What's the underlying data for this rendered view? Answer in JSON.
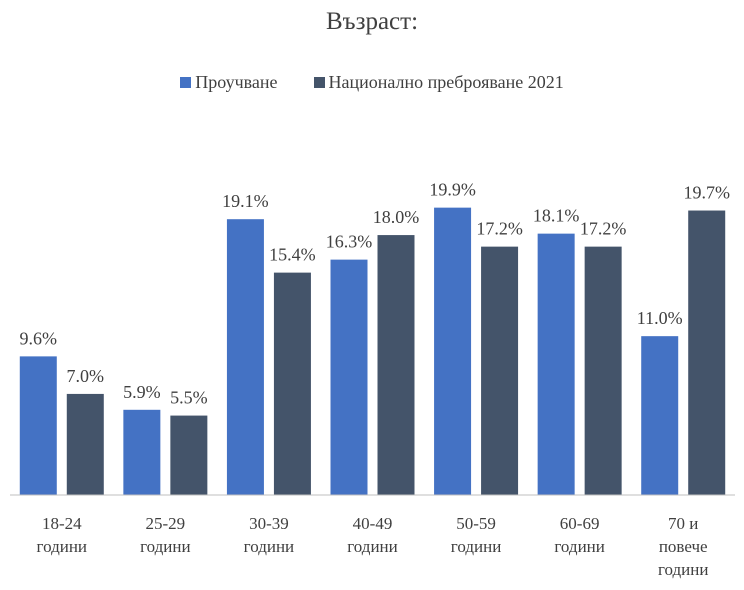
{
  "chart_data": {
    "type": "bar",
    "title": "Възраст:",
    "categories": [
      "18-24\nгодини",
      "25-29\nгодини",
      "30-39\nгодини",
      "40-49\nгодини",
      "50-59\nгодини",
      "60-69\nгодини",
      "70 и\nповече\nгодини"
    ],
    "series": [
      {
        "name": "Проучване",
        "color": "#4472c4",
        "values": [
          9.6,
          5.9,
          19.1,
          16.3,
          19.9,
          18.1,
          11.0
        ],
        "value_labels": [
          "9.6%",
          "5.9%",
          "19.1%",
          "16.3%",
          "19.9%",
          "18.1%",
          "11.0%"
        ]
      },
      {
        "name": "Национално преброяване 2021",
        "color": "#44546a",
        "values": [
          7.0,
          5.5,
          15.4,
          18.0,
          17.2,
          17.2,
          19.7
        ],
        "value_labels": [
          "7.0%",
          "5.5%",
          "15.4%",
          "18.0%",
          "17.2%",
          "17.2%",
          "19.7%"
        ]
      }
    ],
    "ylim": [
      0,
      25
    ],
    "legend": "top"
  }
}
